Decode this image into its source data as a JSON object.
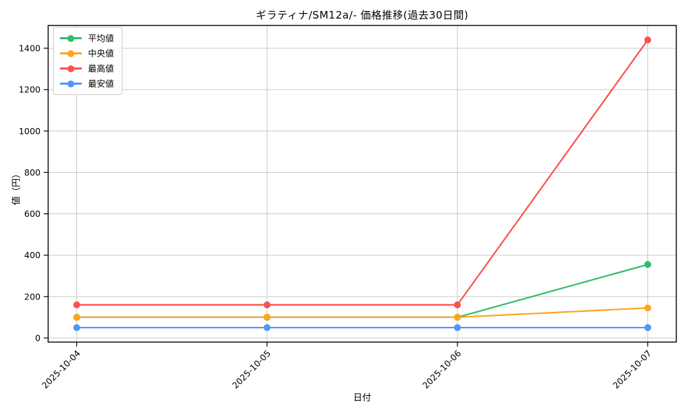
{
  "chart_data": {
    "type": "line",
    "title": "ギラティナ/SM12a/- 価格推移(過去30日間)",
    "xlabel": "日付",
    "ylabel": "値（円）",
    "categories": [
      "2025-10-04",
      "2025-10-05",
      "2025-10-06",
      "2025-10-07"
    ],
    "series": [
      {
        "name": "平均値",
        "color": "#2EBD6B",
        "values": [
          100,
          100,
          100,
          355
        ]
      },
      {
        "name": "中央値",
        "color": "#FFA41B",
        "values": [
          100,
          100,
          100,
          145
        ]
      },
      {
        "name": "最高値",
        "color": "#F8514E",
        "values": [
          160,
          160,
          160,
          1440
        ]
      },
      {
        "name": "最安値",
        "color": "#4D97F7",
        "values": [
          50,
          50,
          50,
          50
        ]
      }
    ],
    "yticks": [
      0,
      200,
      400,
      600,
      800,
      1000,
      1200,
      1400
    ],
    "ylim": [
      -20,
      1510
    ],
    "grid": true,
    "grid_color": "#c9c9c9",
    "spine_color": "#000000",
    "legend_position": "upper left",
    "x_tick_rotation": 45
  }
}
